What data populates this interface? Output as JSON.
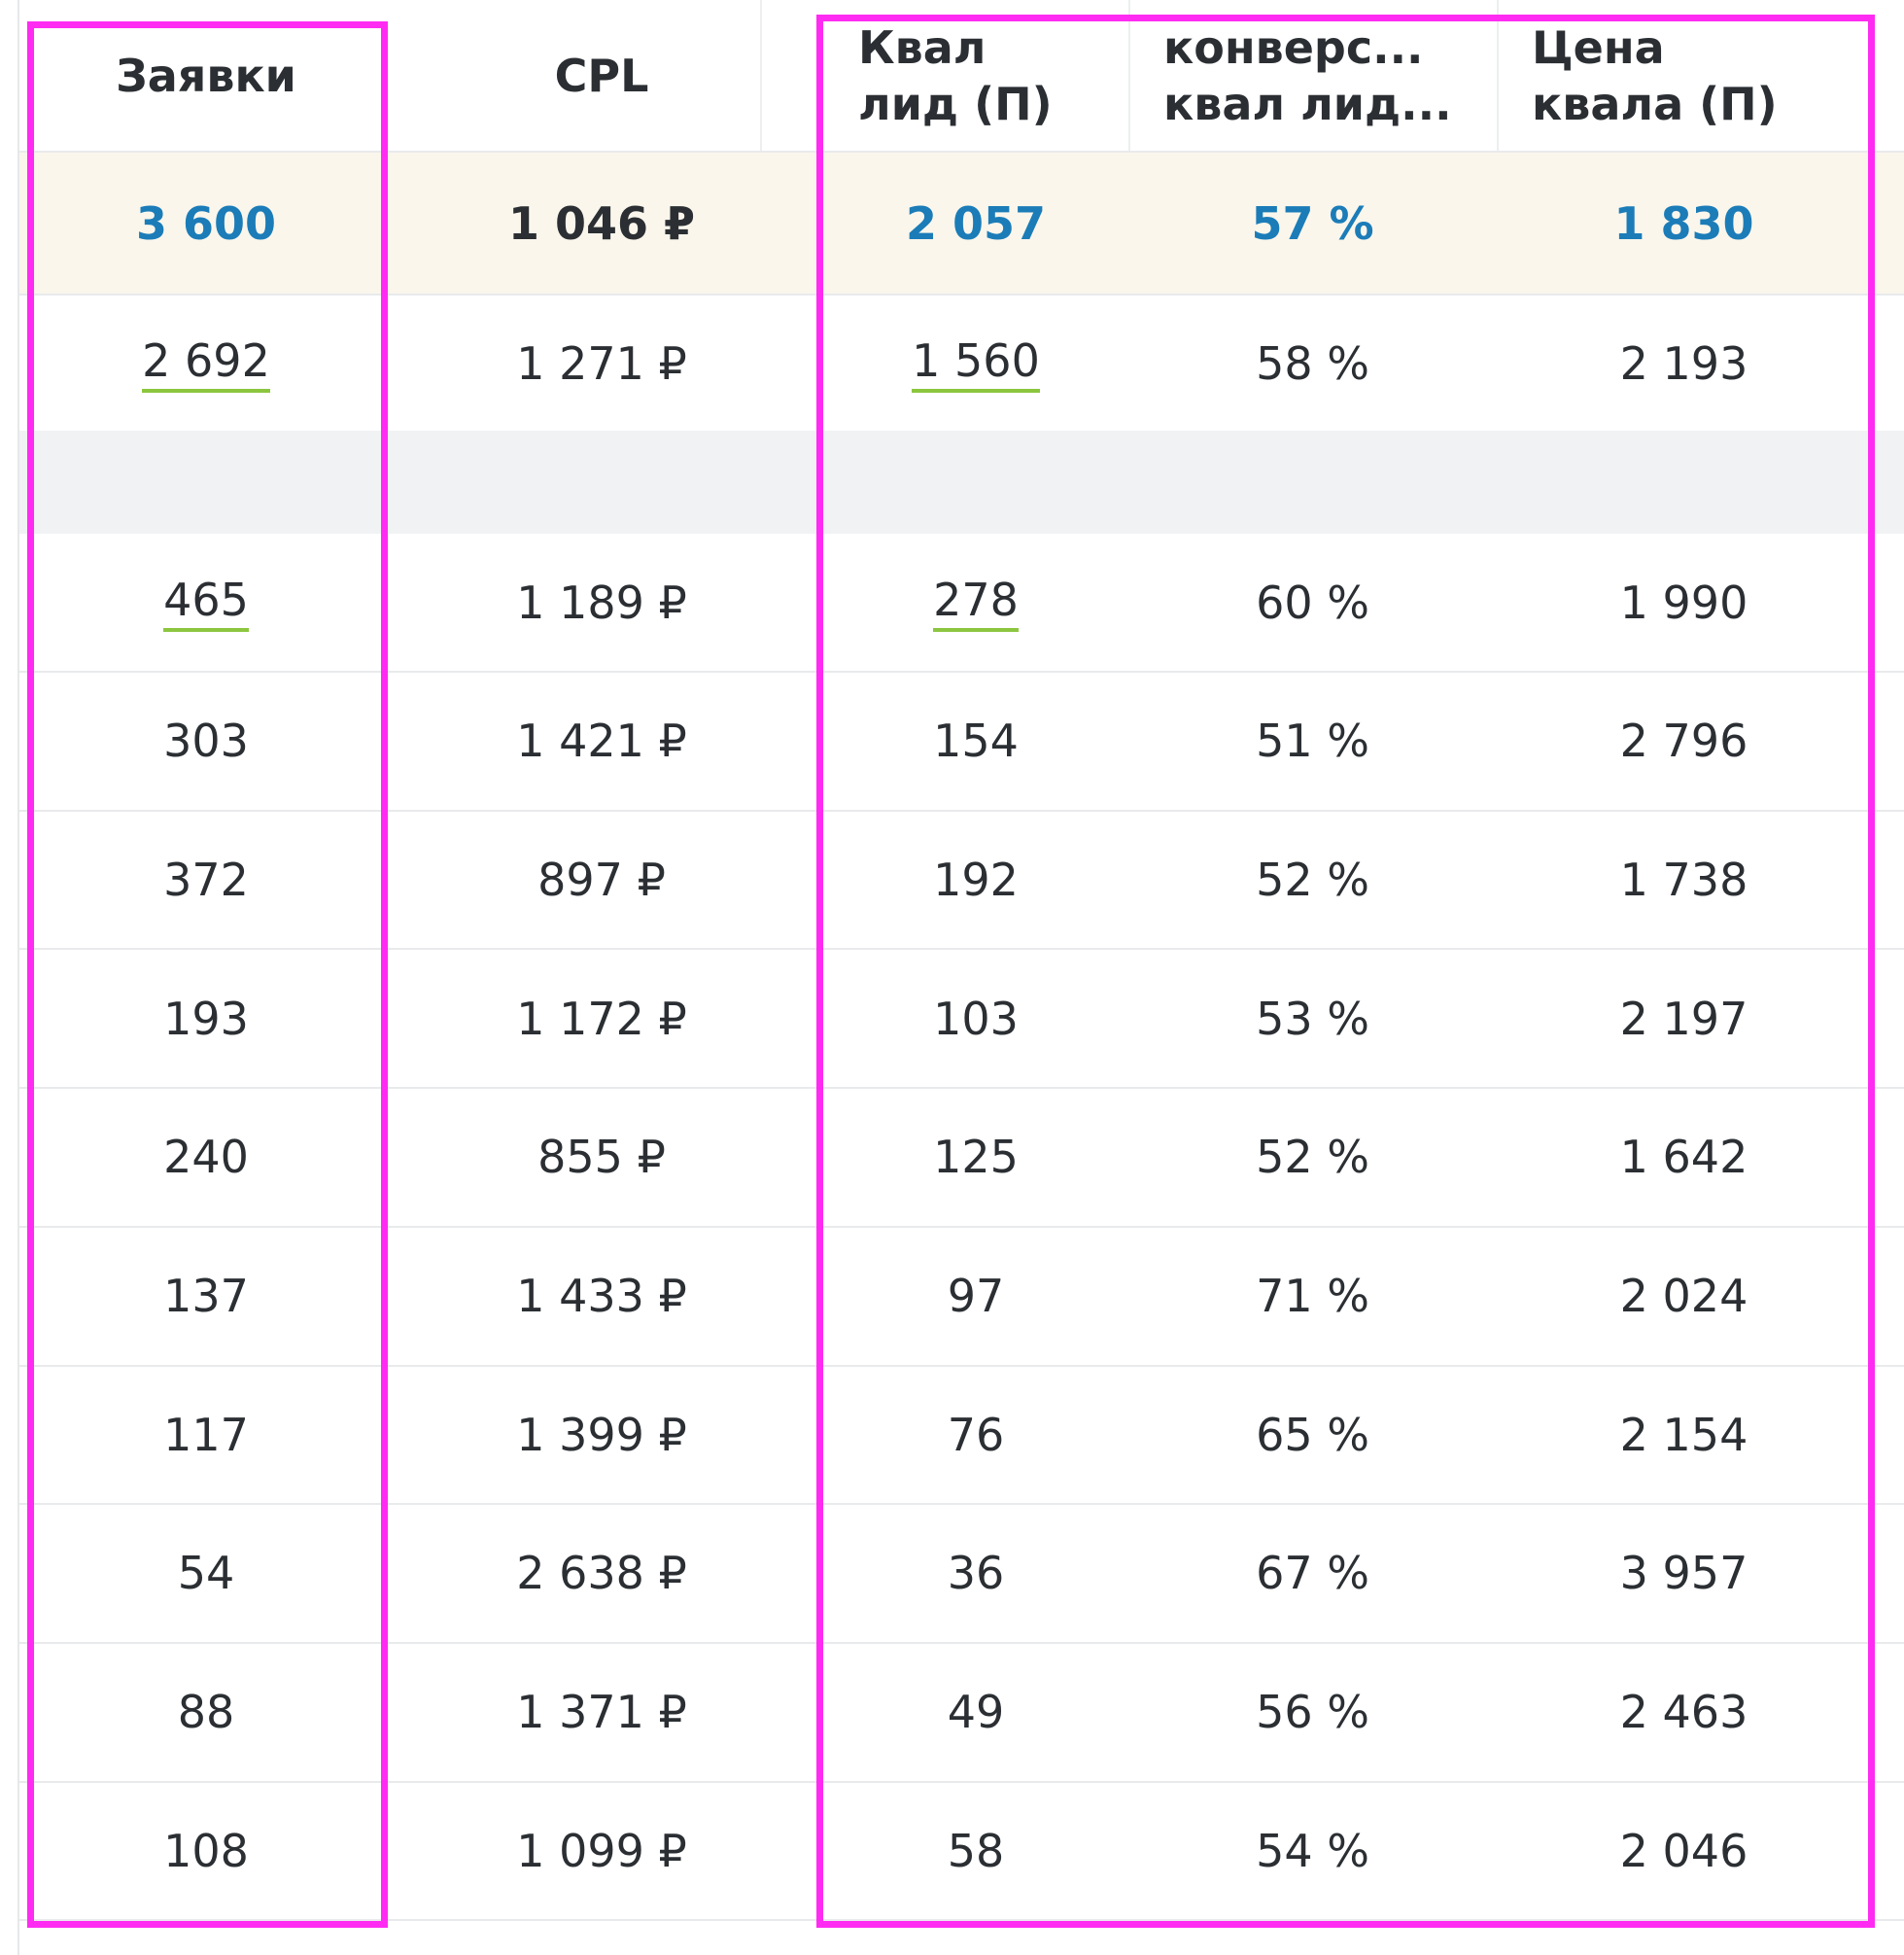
{
  "columns": [
    {
      "label": "Заявки"
    },
    {
      "label": "CPL"
    },
    {
      "line1": "Квал",
      "line2": "лид (П)"
    },
    {
      "line1": "конверс...",
      "line2": "квал лид..."
    },
    {
      "line1": "Цена",
      "line2": "квала (П)"
    }
  ],
  "total": {
    "requests": "3 600",
    "cpl": "1 046 ₽",
    "qual_leads": "2 057",
    "conversion": "57 %",
    "qual_price": "1 830"
  },
  "group": {
    "requests": "2 692",
    "cpl": "1 271 ₽",
    "qual_leads": "1 560",
    "conversion": "58 %",
    "qual_price": "2 193"
  },
  "rows": [
    {
      "requests": "465",
      "cpl": "1 189 ₽",
      "qual_leads": "278",
      "conversion": "60 %",
      "qual_price": "1 990"
    },
    {
      "requests": "303",
      "cpl": "1 421 ₽",
      "qual_leads": "154",
      "conversion": "51 %",
      "qual_price": "2 796"
    },
    {
      "requests": "372",
      "cpl": "897 ₽",
      "qual_leads": "192",
      "conversion": "52 %",
      "qual_price": "1 738"
    },
    {
      "requests": "193",
      "cpl": "1 172 ₽",
      "qual_leads": "103",
      "conversion": "53 %",
      "qual_price": "2 197"
    },
    {
      "requests": "240",
      "cpl": "855 ₽",
      "qual_leads": "125",
      "conversion": "52 %",
      "qual_price": "1 642"
    },
    {
      "requests": "137",
      "cpl": "1 433 ₽",
      "qual_leads": "97",
      "conversion": "71 %",
      "qual_price": "2 024"
    },
    {
      "requests": "117",
      "cpl": "1 399 ₽",
      "qual_leads": "76",
      "conversion": "65 %",
      "qual_price": "2 154"
    },
    {
      "requests": "54",
      "cpl": "2 638 ₽",
      "qual_leads": "36",
      "conversion": "67 %",
      "qual_price": "3 957"
    },
    {
      "requests": "88",
      "cpl": "1 371 ₽",
      "qual_leads": "49",
      "conversion": "56 %",
      "qual_price": "2 463"
    },
    {
      "requests": "108",
      "cpl": "1 099 ₽",
      "qual_leads": "58",
      "conversion": "54 %",
      "qual_price": "2 046"
    }
  ],
  "colors": {
    "highlight": "#ff2bf2",
    "total_value": "#1b7cb8",
    "link_underline": "#8cc63f",
    "total_row_bg": "#faf6ec"
  }
}
